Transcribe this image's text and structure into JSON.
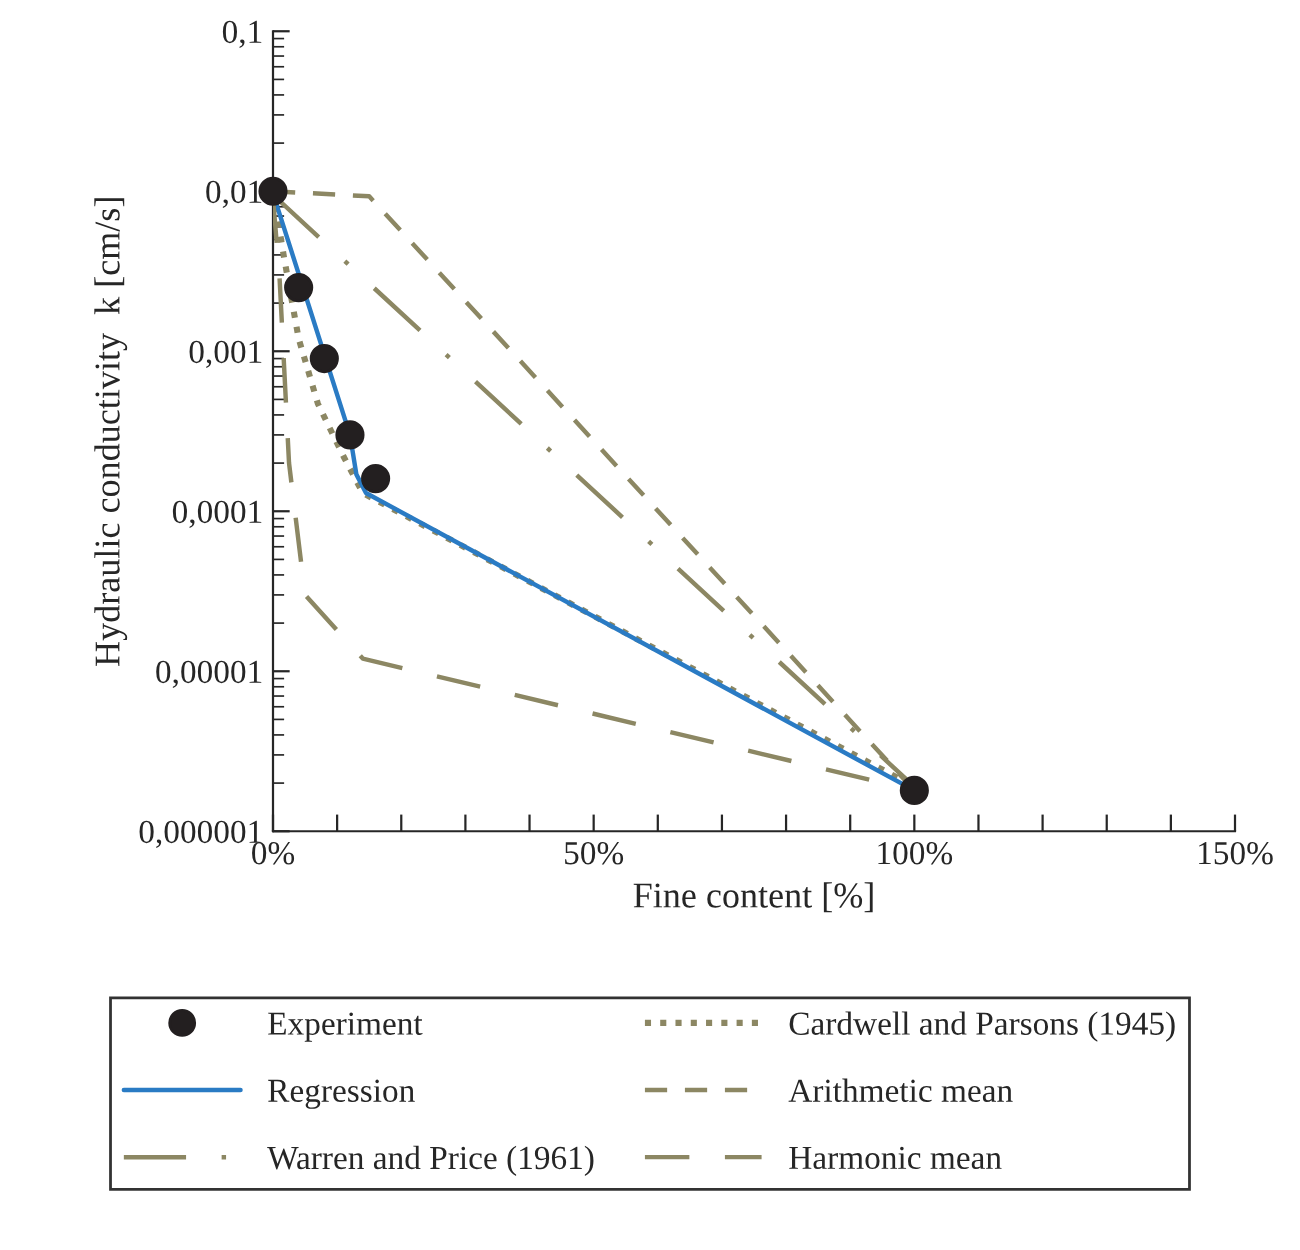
{
  "chart_data": {
    "type": "line",
    "xlabel": "Fine content [%]",
    "ylabel": "Hydraulic conductivity  k [cm/s]",
    "log": "y",
    "grid": false,
    "legend": "bottom",
    "xlim": [
      0,
      150
    ],
    "xticks": [
      {
        "value": 0,
        "label": "0%"
      },
      {
        "value": 10,
        "label": null
      },
      {
        "value": 20,
        "label": null
      },
      {
        "value": 30,
        "label": null
      },
      {
        "value": 40,
        "label": null
      },
      {
        "value": 50,
        "label": "50%"
      },
      {
        "value": 60,
        "label": null
      },
      {
        "value": 70,
        "label": null
      },
      {
        "value": 80,
        "label": null
      },
      {
        "value": 90,
        "label": null
      },
      {
        "value": 100,
        "label": "100%"
      },
      {
        "value": 110,
        "label": null
      },
      {
        "value": 120,
        "label": null
      },
      {
        "value": 130,
        "label": null
      },
      {
        "value": 140,
        "label": null
      },
      {
        "value": 150,
        "label": "150%"
      }
    ],
    "ylim": [
      1e-06,
      0.1
    ],
    "yticks": [
      {
        "value": 1e-06,
        "label": "0,000001"
      },
      {
        "value": 1e-05,
        "label": "0,00001"
      },
      {
        "value": 0.0001,
        "label": "0,0001"
      },
      {
        "value": 0.001,
        "label": "0,001"
      },
      {
        "value": 0.01,
        "label": "0,01"
      },
      {
        "value": 0.1,
        "label": "0,1"
      }
    ],
    "series": [
      {
        "name": "Experiment",
        "type": "scatter",
        "marker": "circle",
        "color": "#231f20",
        "x": [
          0,
          4,
          8,
          12,
          16,
          100
        ],
        "values": [
          0.01,
          0.0025,
          0.0009,
          0.0003,
          0.00016,
          1.8e-06
        ]
      },
      {
        "name": "Cardwell and Parsons (1945)",
        "line_style": "dotted",
        "color": "#8c8763",
        "x": [
          0,
          1.7,
          4,
          7,
          11,
          14,
          100
        ],
        "values": [
          0.01,
          0.0039,
          0.0012,
          0.00047,
          0.00022,
          0.00013,
          1.9e-06
        ]
      },
      {
        "name": "Regression",
        "line_style": "solid",
        "color": "#2a7bc4",
        "x": [
          0.5,
          12,
          13,
          14.5,
          100
        ],
        "values": [
          0.0084,
          0.0003,
          0.00017,
          0.00013,
          1.8e-06
        ]
      },
      {
        "name": "Arithmetic mean",
        "line_style": "dashed",
        "color": "#8c8763",
        "x": [
          0,
          15,
          100
        ],
        "values": [
          0.01,
          0.0093,
          1.8e-06
        ]
      },
      {
        "name": "Warren and Price (1961)",
        "line_style": "dashdot",
        "color": "#8c8763",
        "x": [
          0,
          100
        ],
        "values": [
          0.0095,
          1.9e-06
        ]
      },
      {
        "name": "Harmonic mean",
        "line_style": "longdash",
        "color": "#8c8763",
        "x": [
          0,
          1,
          2.5,
          5,
          14,
          100
        ],
        "values": [
          0.009,
          0.003,
          0.0002,
          3e-05,
          1.2e-05,
          1.8e-06
        ]
      }
    ]
  }
}
